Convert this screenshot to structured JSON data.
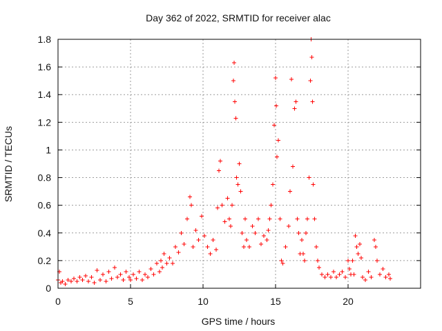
{
  "chart_data": {
    "type": "scatter",
    "title": "Day 362 of 2022, SRMTID for receiver alac",
    "xlabel": "GPS time / hours",
    "ylabel": "SRMTID / TECUs",
    "xlim": [
      0,
      25
    ],
    "ylim": [
      0,
      1.8
    ],
    "xticks": [
      0,
      5,
      10,
      15,
      20
    ],
    "yticks": [
      0,
      0.2,
      0.4,
      0.6,
      0.8,
      1,
      1.2,
      1.4,
      1.6,
      1.8
    ],
    "xtick_labels": [
      "0",
      "5",
      "10",
      "15",
      "20"
    ],
    "ytick_labels": [
      "0",
      "0.2",
      "0.4",
      "0.6",
      "0.8",
      "1",
      "1.2",
      "1.4",
      "1.6",
      "1.8"
    ],
    "grid": true,
    "marker": "+",
    "marker_color": "#ff0000",
    "series": [
      {
        "name": "SRMTID",
        "points": [
          [
            0.0,
            0.06
          ],
          [
            0.1,
            0.12
          ],
          [
            0.2,
            0.04
          ],
          [
            0.3,
            0.05
          ],
          [
            0.5,
            0.03
          ],
          [
            0.7,
            0.06
          ],
          [
            0.9,
            0.05
          ],
          [
            1.1,
            0.07
          ],
          [
            1.3,
            0.05
          ],
          [
            1.5,
            0.08
          ],
          [
            1.7,
            0.06
          ],
          [
            1.9,
            0.09
          ],
          [
            2.1,
            0.05
          ],
          [
            2.3,
            0.08
          ],
          [
            2.5,
            0.04
          ],
          [
            2.7,
            0.13
          ],
          [
            2.9,
            0.06
          ],
          [
            3.1,
            0.1
          ],
          [
            3.3,
            0.05
          ],
          [
            3.5,
            0.12
          ],
          [
            3.7,
            0.07
          ],
          [
            3.9,
            0.15
          ],
          [
            4.1,
            0.08
          ],
          [
            4.3,
            0.1
          ],
          [
            4.5,
            0.06
          ],
          [
            4.7,
            0.12
          ],
          [
            4.9,
            0.08
          ],
          [
            5.0,
            0.06
          ],
          [
            5.2,
            0.1
          ],
          [
            5.4,
            0.07
          ],
          [
            5.6,
            0.12
          ],
          [
            5.8,
            0.06
          ],
          [
            6.0,
            0.1
          ],
          [
            6.2,
            0.08
          ],
          [
            6.4,
            0.14
          ],
          [
            6.6,
            0.1
          ],
          [
            6.8,
            0.18
          ],
          [
            7.0,
            0.12
          ],
          [
            7.1,
            0.2
          ],
          [
            7.2,
            0.15
          ],
          [
            7.3,
            0.25
          ],
          [
            7.5,
            0.18
          ],
          [
            7.7,
            0.22
          ],
          [
            7.9,
            0.18
          ],
          [
            8.1,
            0.3
          ],
          [
            8.3,
            0.26
          ],
          [
            8.5,
            0.4
          ],
          [
            8.7,
            0.32
          ],
          [
            8.9,
            0.5
          ],
          [
            9.1,
            0.66
          ],
          [
            9.2,
            0.6
          ],
          [
            9.3,
            0.3
          ],
          [
            9.5,
            0.42
          ],
          [
            9.7,
            0.35
          ],
          [
            9.9,
            0.52
          ],
          [
            10.1,
            0.38
          ],
          [
            10.3,
            0.3
          ],
          [
            10.5,
            0.25
          ],
          [
            10.7,
            0.35
          ],
          [
            10.9,
            0.28
          ],
          [
            11.0,
            0.58
          ],
          [
            11.1,
            0.85
          ],
          [
            11.2,
            0.92
          ],
          [
            11.3,
            0.6
          ],
          [
            11.5,
            0.48
          ],
          [
            11.7,
            0.65
          ],
          [
            11.8,
            0.5
          ],
          [
            11.9,
            0.45
          ],
          [
            12.0,
            0.6
          ],
          [
            12.1,
            1.5
          ],
          [
            12.15,
            1.63
          ],
          [
            12.2,
            1.35
          ],
          [
            12.25,
            1.23
          ],
          [
            12.3,
            0.8
          ],
          [
            12.4,
            0.75
          ],
          [
            12.5,
            0.9
          ],
          [
            12.6,
            0.7
          ],
          [
            12.7,
            0.4
          ],
          [
            12.8,
            0.3
          ],
          [
            12.9,
            0.5
          ],
          [
            13.0,
            0.35
          ],
          [
            13.2,
            0.3
          ],
          [
            13.4,
            0.45
          ],
          [
            13.6,
            0.4
          ],
          [
            13.8,
            0.5
          ],
          [
            14.0,
            0.32
          ],
          [
            14.2,
            0.38
          ],
          [
            14.4,
            0.35
          ],
          [
            14.5,
            0.42
          ],
          [
            14.6,
            0.5
          ],
          [
            14.7,
            0.6
          ],
          [
            14.8,
            0.75
          ],
          [
            14.9,
            1.18
          ],
          [
            15.0,
            1.52
          ],
          [
            15.05,
            1.32
          ],
          [
            15.1,
            0.95
          ],
          [
            15.2,
            1.07
          ],
          [
            15.3,
            0.5
          ],
          [
            15.4,
            0.2
          ],
          [
            15.5,
            0.18
          ],
          [
            15.7,
            0.3
          ],
          [
            15.9,
            0.45
          ],
          [
            16.0,
            0.7
          ],
          [
            16.1,
            1.51
          ],
          [
            16.2,
            0.88
          ],
          [
            16.3,
            1.3
          ],
          [
            16.4,
            1.35
          ],
          [
            16.5,
            0.5
          ],
          [
            16.6,
            0.4
          ],
          [
            16.7,
            0.25
          ],
          [
            16.8,
            0.35
          ],
          [
            16.9,
            0.25
          ],
          [
            17.0,
            0.2
          ],
          [
            17.1,
            0.4
          ],
          [
            17.2,
            0.5
          ],
          [
            17.3,
            0.8
          ],
          [
            17.4,
            1.5
          ],
          [
            17.45,
            1.8
          ],
          [
            17.5,
            1.67
          ],
          [
            17.55,
            1.35
          ],
          [
            17.6,
            0.75
          ],
          [
            17.7,
            0.5
          ],
          [
            17.8,
            0.3
          ],
          [
            17.9,
            0.2
          ],
          [
            18.0,
            0.15
          ],
          [
            18.2,
            0.1
          ],
          [
            18.4,
            0.08
          ],
          [
            18.6,
            0.1
          ],
          [
            18.8,
            0.08
          ],
          [
            19.0,
            0.12
          ],
          [
            19.2,
            0.08
          ],
          [
            19.4,
            0.1
          ],
          [
            19.6,
            0.12
          ],
          [
            19.8,
            0.08
          ],
          [
            20.0,
            0.2
          ],
          [
            20.1,
            0.14
          ],
          [
            20.2,
            0.1
          ],
          [
            20.3,
            0.2
          ],
          [
            20.4,
            0.1
          ],
          [
            20.5,
            0.38
          ],
          [
            20.6,
            0.3
          ],
          [
            20.7,
            0.25
          ],
          [
            20.8,
            0.32
          ],
          [
            20.9,
            0.22
          ],
          [
            21.0,
            0.08
          ],
          [
            21.2,
            0.06
          ],
          [
            21.4,
            0.12
          ],
          [
            21.6,
            0.08
          ],
          [
            21.8,
            0.35
          ],
          [
            21.9,
            0.3
          ],
          [
            22.0,
            0.2
          ],
          [
            22.2,
            0.1
          ],
          [
            22.4,
            0.14
          ],
          [
            22.6,
            0.08
          ],
          [
            22.8,
            0.1
          ],
          [
            22.9,
            0.07
          ]
        ]
      }
    ]
  }
}
